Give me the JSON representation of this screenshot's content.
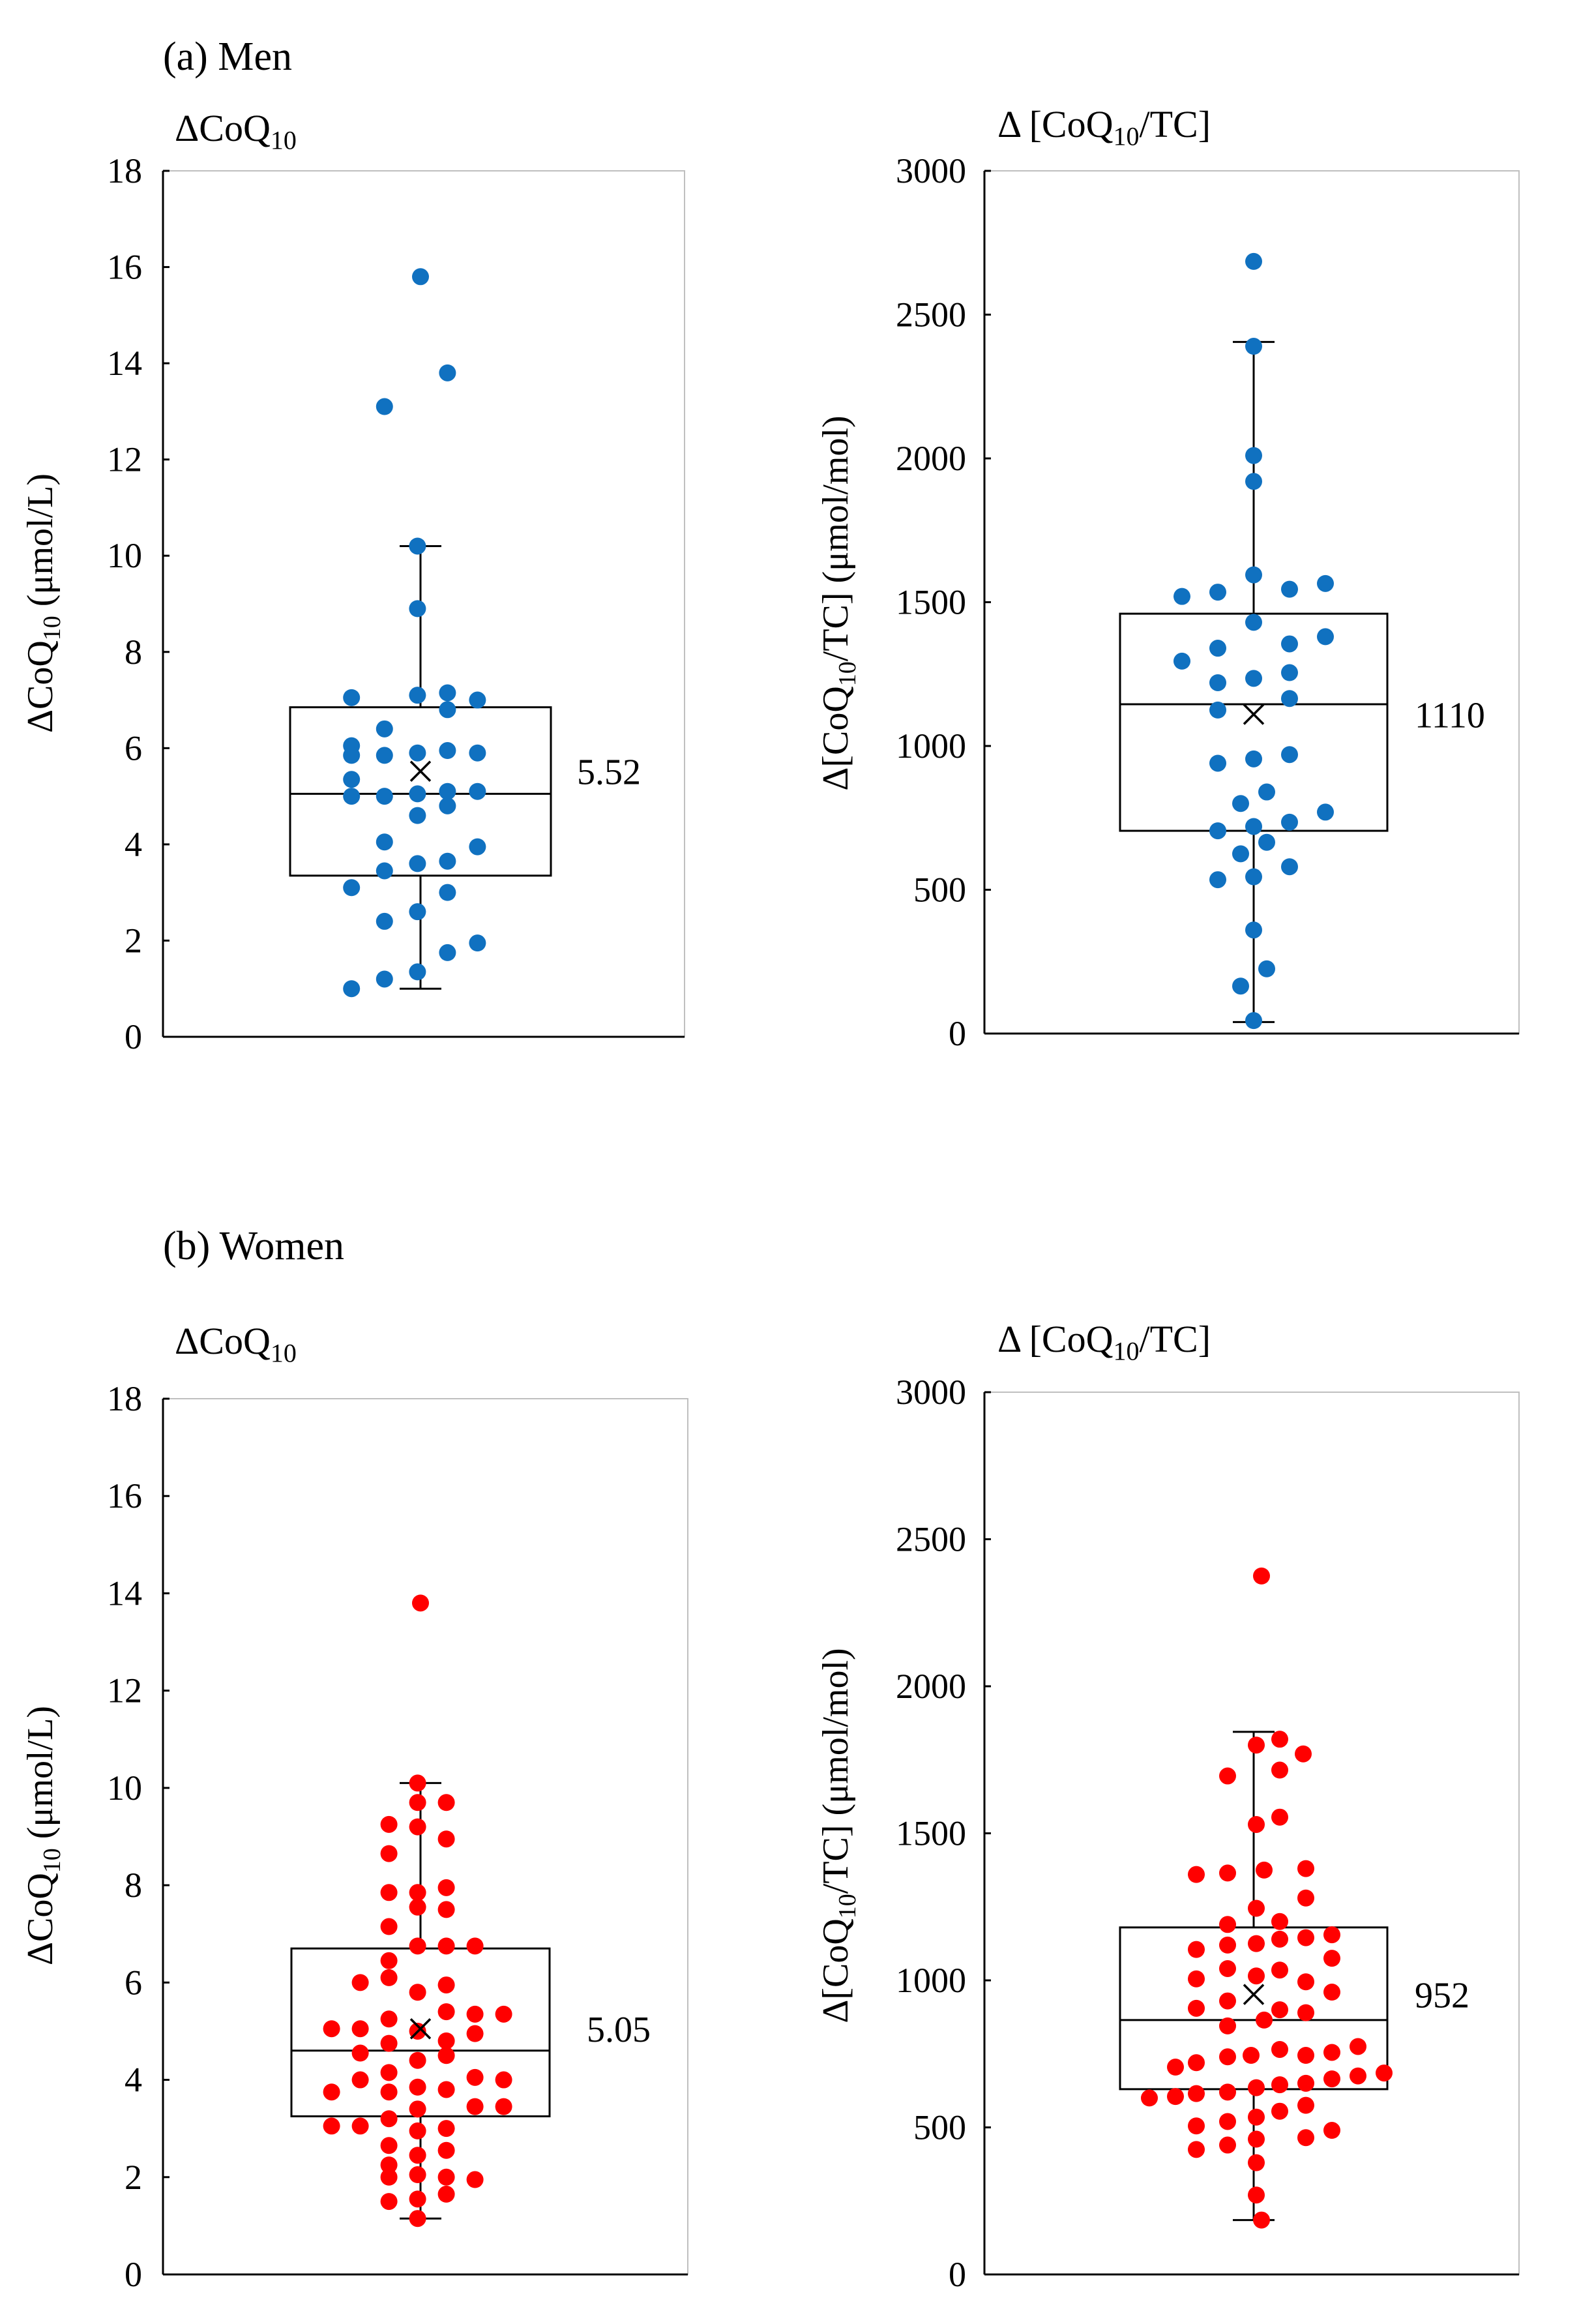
{
  "panels": [
    {
      "label": "(a) Men"
    },
    {
      "label": "(b) Women"
    }
  ],
  "colors": {
    "men": "#1071c0",
    "women": "#ff0000",
    "axis": "#000000",
    "frame": "#bfbfbf"
  },
  "chart_data": [
    {
      "id": "men-coq10",
      "group": "Men",
      "type": "scatter",
      "title_main": "ΔCoQ",
      "title_sub": "10",
      "title_end": "",
      "ylabel_main": "ΔCoQ",
      "ylabel_sub": "10",
      "ylabel_end": " (μmol/L)",
      "ylim": [
        0,
        18
      ],
      "yticks": [
        0,
        2,
        4,
        6,
        8,
        10,
        12,
        14,
        16,
        18
      ],
      "box": {
        "min": 1.0,
        "q1": 3.35,
        "median": 5.05,
        "q3": 6.85,
        "max": 10.2
      },
      "mean": 5.52,
      "mean_label": "5.52",
      "color_key": "men",
      "points": [
        {
          "x": 0,
          "y": 15.8
        },
        {
          "x": 0.9,
          "y": 13.8
        },
        {
          "x": -1.2,
          "y": 13.1
        },
        {
          "x": -0.1,
          "y": 10.2
        },
        {
          "x": -0.1,
          "y": 8.9
        },
        {
          "x": -2.3,
          "y": 7.05
        },
        {
          "x": -0.1,
          "y": 7.1
        },
        {
          "x": 0.9,
          "y": 7.15
        },
        {
          "x": 1.9,
          "y": 7.0
        },
        {
          "x": 0.9,
          "y": 6.8
        },
        {
          "x": -1.2,
          "y": 6.4
        },
        {
          "x": -2.3,
          "y": 6.05
        },
        {
          "x": -2.3,
          "y": 5.85
        },
        {
          "x": -1.2,
          "y": 5.85
        },
        {
          "x": -0.1,
          "y": 5.9
        },
        {
          "x": 0.9,
          "y": 5.95
        },
        {
          "x": 1.9,
          "y": 5.9
        },
        {
          "x": -2.3,
          "y": 5.35
        },
        {
          "x": -2.3,
          "y": 5.0
        },
        {
          "x": -1.2,
          "y": 5.0
        },
        {
          "x": -0.1,
          "y": 5.05
        },
        {
          "x": 0.9,
          "y": 5.1
        },
        {
          "x": 1.9,
          "y": 5.1
        },
        {
          "x": 0.9,
          "y": 4.8
        },
        {
          "x": -0.1,
          "y": 4.6
        },
        {
          "x": -1.2,
          "y": 4.05
        },
        {
          "x": 1.9,
          "y": 3.95
        },
        {
          "x": -0.1,
          "y": 3.6
        },
        {
          "x": 0.9,
          "y": 3.65
        },
        {
          "x": -1.2,
          "y": 3.45
        },
        {
          "x": -2.3,
          "y": 3.1
        },
        {
          "x": 0.9,
          "y": 3.0
        },
        {
          "x": -0.1,
          "y": 2.6
        },
        {
          "x": -1.2,
          "y": 2.4
        },
        {
          "x": 1.9,
          "y": 1.95
        },
        {
          "x": 0.9,
          "y": 1.75
        },
        {
          "x": -0.1,
          "y": 1.35
        },
        {
          "x": -1.2,
          "y": 1.2
        },
        {
          "x": -2.3,
          "y": 1.0
        }
      ]
    },
    {
      "id": "men-ratio",
      "group": "Men",
      "type": "scatter",
      "title_main": "Δ [CoQ",
      "title_sub": "10",
      "title_end": "/TC]",
      "ylabel_main": "Δ[CoQ",
      "ylabel_sub": "10",
      "ylabel_end": "/TC] (μmol/mol)",
      "ylim": [
        0,
        3000
      ],
      "yticks": [
        0,
        500,
        1000,
        1500,
        2000,
        2500,
        3000
      ],
      "box": {
        "min": 40,
        "q1": 705,
        "median": 1145,
        "q3": 1460,
        "max": 2405
      },
      "mean": 1110,
      "mean_label": "1110",
      "color_key": "men",
      "points": [
        {
          "x": 0,
          "y": 2685
        },
        {
          "x": 0,
          "y": 2390
        },
        {
          "x": 0,
          "y": 2010
        },
        {
          "x": 0,
          "y": 1920
        },
        {
          "x": 0,
          "y": 1595
        },
        {
          "x": 2.2,
          "y": 1565
        },
        {
          "x": 1.1,
          "y": 1545
        },
        {
          "x": -1.1,
          "y": 1535
        },
        {
          "x": -2.2,
          "y": 1520
        },
        {
          "x": 0,
          "y": 1430
        },
        {
          "x": 2.2,
          "y": 1380
        },
        {
          "x": 1.1,
          "y": 1355
        },
        {
          "x": -1.1,
          "y": 1340
        },
        {
          "x": -2.2,
          "y": 1295
        },
        {
          "x": 1.1,
          "y": 1255
        },
        {
          "x": 0,
          "y": 1235
        },
        {
          "x": -1.1,
          "y": 1220
        },
        {
          "x": 1.1,
          "y": 1165
        },
        {
          "x": -1.1,
          "y": 1125
        },
        {
          "x": 1.1,
          "y": 970
        },
        {
          "x": 0,
          "y": 955
        },
        {
          "x": -1.1,
          "y": 940
        },
        {
          "x": 0.4,
          "y": 840
        },
        {
          "x": -0.4,
          "y": 800
        },
        {
          "x": 2.2,
          "y": 770
        },
        {
          "x": 1.1,
          "y": 735
        },
        {
          "x": 0,
          "y": 720
        },
        {
          "x": -1.1,
          "y": 705
        },
        {
          "x": 0.4,
          "y": 665
        },
        {
          "x": -0.4,
          "y": 625
        },
        {
          "x": 1.1,
          "y": 580
        },
        {
          "x": 0,
          "y": 545
        },
        {
          "x": -1.1,
          "y": 535
        },
        {
          "x": 0,
          "y": 360
        },
        {
          "x": 0.4,
          "y": 225
        },
        {
          "x": -0.4,
          "y": 165
        },
        {
          "x": 0,
          "y": 45
        }
      ]
    },
    {
      "id": "women-coq10",
      "group": "Women",
      "type": "scatter",
      "title_main": "ΔCoQ",
      "title_sub": "10",
      "title_end": "",
      "ylabel_main": "ΔCoQ",
      "ylabel_sub": "10",
      "ylabel_end": " (μmol/L)",
      "ylim": [
        0,
        18
      ],
      "yticks": [
        0,
        2,
        4,
        6,
        8,
        10,
        12,
        14,
        16,
        18
      ],
      "box": {
        "min": 1.15,
        "q1": 3.25,
        "median": 4.6,
        "q3": 6.7,
        "max": 10.1
      },
      "mean": 5.05,
      "mean_label": "5.05",
      "color_key": "women",
      "points": [
        {
          "x": 0,
          "y": 13.8
        },
        {
          "x": -0.1,
          "y": 10.1
        },
        {
          "x": -0.1,
          "y": 9.7
        },
        {
          "x": 0.9,
          "y": 9.7
        },
        {
          "x": -1.1,
          "y": 9.25
        },
        {
          "x": -0.1,
          "y": 9.2
        },
        {
          "x": 0.9,
          "y": 8.95
        },
        {
          "x": -1.1,
          "y": 8.65
        },
        {
          "x": -1.1,
          "y": 7.85
        },
        {
          "x": -0.1,
          "y": 7.85
        },
        {
          "x": 0.9,
          "y": 7.95
        },
        {
          "x": -0.1,
          "y": 7.55
        },
        {
          "x": 0.9,
          "y": 7.5
        },
        {
          "x": -1.1,
          "y": 7.15
        },
        {
          "x": -0.1,
          "y": 6.75
        },
        {
          "x": 0.9,
          "y": 6.75
        },
        {
          "x": 1.9,
          "y": 6.75
        },
        {
          "x": -1.1,
          "y": 6.45
        },
        {
          "x": -1.1,
          "y": 6.1
        },
        {
          "x": -2.1,
          "y": 6.0
        },
        {
          "x": 0.9,
          "y": 5.95
        },
        {
          "x": -0.1,
          "y": 5.8
        },
        {
          "x": 0.9,
          "y": 5.4
        },
        {
          "x": 1.9,
          "y": 5.35
        },
        {
          "x": 2.9,
          "y": 5.35
        },
        {
          "x": -1.1,
          "y": 5.25
        },
        {
          "x": -3.1,
          "y": 5.05
        },
        {
          "x": -2.1,
          "y": 5.05
        },
        {
          "x": -0.1,
          "y": 5.0
        },
        {
          "x": 1.9,
          "y": 4.95
        },
        {
          "x": 0.9,
          "y": 4.8
        },
        {
          "x": -1.1,
          "y": 4.75
        },
        {
          "x": -2.1,
          "y": 4.55
        },
        {
          "x": 0.9,
          "y": 4.5
        },
        {
          "x": -0.1,
          "y": 4.4
        },
        {
          "x": -1.1,
          "y": 4.15
        },
        {
          "x": 1.9,
          "y": 4.05
        },
        {
          "x": -2.1,
          "y": 4.0
        },
        {
          "x": 2.9,
          "y": 4.0
        },
        {
          "x": -0.1,
          "y": 3.85
        },
        {
          "x": -3.1,
          "y": 3.75
        },
        {
          "x": -1.1,
          "y": 3.75
        },
        {
          "x": 0.9,
          "y": 3.8
        },
        {
          "x": 1.9,
          "y": 3.45
        },
        {
          "x": 2.9,
          "y": 3.45
        },
        {
          "x": -0.1,
          "y": 3.4
        },
        {
          "x": -1.1,
          "y": 3.2
        },
        {
          "x": -2.1,
          "y": 3.05
        },
        {
          "x": -3.1,
          "y": 3.05
        },
        {
          "x": 0.9,
          "y": 3.0
        },
        {
          "x": -0.1,
          "y": 2.95
        },
        {
          "x": -1.1,
          "y": 2.65
        },
        {
          "x": 0.9,
          "y": 2.55
        },
        {
          "x": -0.1,
          "y": 2.45
        },
        {
          "x": -1.1,
          "y": 2.25
        },
        {
          "x": -0.1,
          "y": 2.05
        },
        {
          "x": -1.1,
          "y": 2.0
        },
        {
          "x": 0.9,
          "y": 2.0
        },
        {
          "x": 1.9,
          "y": 1.95
        },
        {
          "x": 0.9,
          "y": 1.65
        },
        {
          "x": -1.1,
          "y": 1.5
        },
        {
          "x": -0.1,
          "y": 1.55
        },
        {
          "x": -0.1,
          "y": 1.15
        }
      ]
    },
    {
      "id": "women-ratio",
      "group": "Women",
      "type": "scatter",
      "title_main": "Δ [CoQ",
      "title_sub": "10",
      "title_end": "/TC]",
      "ylabel_main": "Δ[CoQ",
      "ylabel_sub": "10",
      "ylabel_end": "/TC] (μmol/mol)",
      "ylim": [
        0,
        3000
      ],
      "yticks": [
        0,
        500,
        1000,
        1500,
        2000,
        2500,
        3000
      ],
      "box": {
        "min": 185,
        "q1": 630,
        "median": 865,
        "q3": 1180,
        "max": 1845
      },
      "mean": 952,
      "mean_label": "952",
      "color_key": "women",
      "points": [
        {
          "x": 0.3,
          "y": 2375
        },
        {
          "x": 1.0,
          "y": 1820
        },
        {
          "x": 0.1,
          "y": 1800
        },
        {
          "x": 1.9,
          "y": 1770
        },
        {
          "x": 1.0,
          "y": 1715
        },
        {
          "x": -1.0,
          "y": 1695
        },
        {
          "x": 1.0,
          "y": 1555
        },
        {
          "x": 0.1,
          "y": 1530
        },
        {
          "x": 2.0,
          "y": 1380
        },
        {
          "x": 0.4,
          "y": 1375
        },
        {
          "x": -1.0,
          "y": 1365
        },
        {
          "x": -2.2,
          "y": 1360
        },
        {
          "x": 2.0,
          "y": 1280
        },
        {
          "x": 0.1,
          "y": 1245
        },
        {
          "x": 1.0,
          "y": 1200
        },
        {
          "x": -1.0,
          "y": 1190
        },
        {
          "x": 3.0,
          "y": 1155
        },
        {
          "x": 2.0,
          "y": 1145
        },
        {
          "x": 1.0,
          "y": 1140
        },
        {
          "x": 0.1,
          "y": 1125
        },
        {
          "x": -1.0,
          "y": 1120
        },
        {
          "x": -2.2,
          "y": 1105
        },
        {
          "x": 3.0,
          "y": 1075
        },
        {
          "x": -1.0,
          "y": 1040
        },
        {
          "x": 1.0,
          "y": 1035
        },
        {
          "x": 0.1,
          "y": 1015
        },
        {
          "x": 2.0,
          "y": 995
        },
        {
          "x": -2.2,
          "y": 1005
        },
        {
          "x": 3.0,
          "y": 960
        },
        {
          "x": -1.0,
          "y": 930
        },
        {
          "x": -2.2,
          "y": 905
        },
        {
          "x": 1.0,
          "y": 900
        },
        {
          "x": 2.0,
          "y": 890
        },
        {
          "x": 0.4,
          "y": 865
        },
        {
          "x": -1.0,
          "y": 845
        },
        {
          "x": 4.0,
          "y": 775
        },
        {
          "x": 1.0,
          "y": 765
        },
        {
          "x": 3.0,
          "y": 755
        },
        {
          "x": 2.0,
          "y": 745
        },
        {
          "x": -0.1,
          "y": 745
        },
        {
          "x": -1.0,
          "y": 740
        },
        {
          "x": -2.2,
          "y": 720
        },
        {
          "x": -3.0,
          "y": 705
        },
        {
          "x": 5.0,
          "y": 685
        },
        {
          "x": 4.0,
          "y": 675
        },
        {
          "x": 3.0,
          "y": 665
        },
        {
          "x": 2.0,
          "y": 650
        },
        {
          "x": 1.0,
          "y": 645
        },
        {
          "x": 0.1,
          "y": 635
        },
        {
          "x": -1.0,
          "y": 620
        },
        {
          "x": -2.2,
          "y": 615
        },
        {
          "x": -3.0,
          "y": 605
        },
        {
          "x": -4.0,
          "y": 600
        },
        {
          "x": 2.0,
          "y": 575
        },
        {
          "x": 1.0,
          "y": 555
        },
        {
          "x": 0.1,
          "y": 535
        },
        {
          "x": -1.0,
          "y": 520
        },
        {
          "x": -2.2,
          "y": 505
        },
        {
          "x": 3.0,
          "y": 490
        },
        {
          "x": 2.0,
          "y": 465
        },
        {
          "x": 0.1,
          "y": 460
        },
        {
          "x": -1.0,
          "y": 440
        },
        {
          "x": -2.2,
          "y": 425
        },
        {
          "x": 0.1,
          "y": 380
        },
        {
          "x": 0.1,
          "y": 270
        },
        {
          "x": 0.3,
          "y": 185
        }
      ]
    }
  ]
}
